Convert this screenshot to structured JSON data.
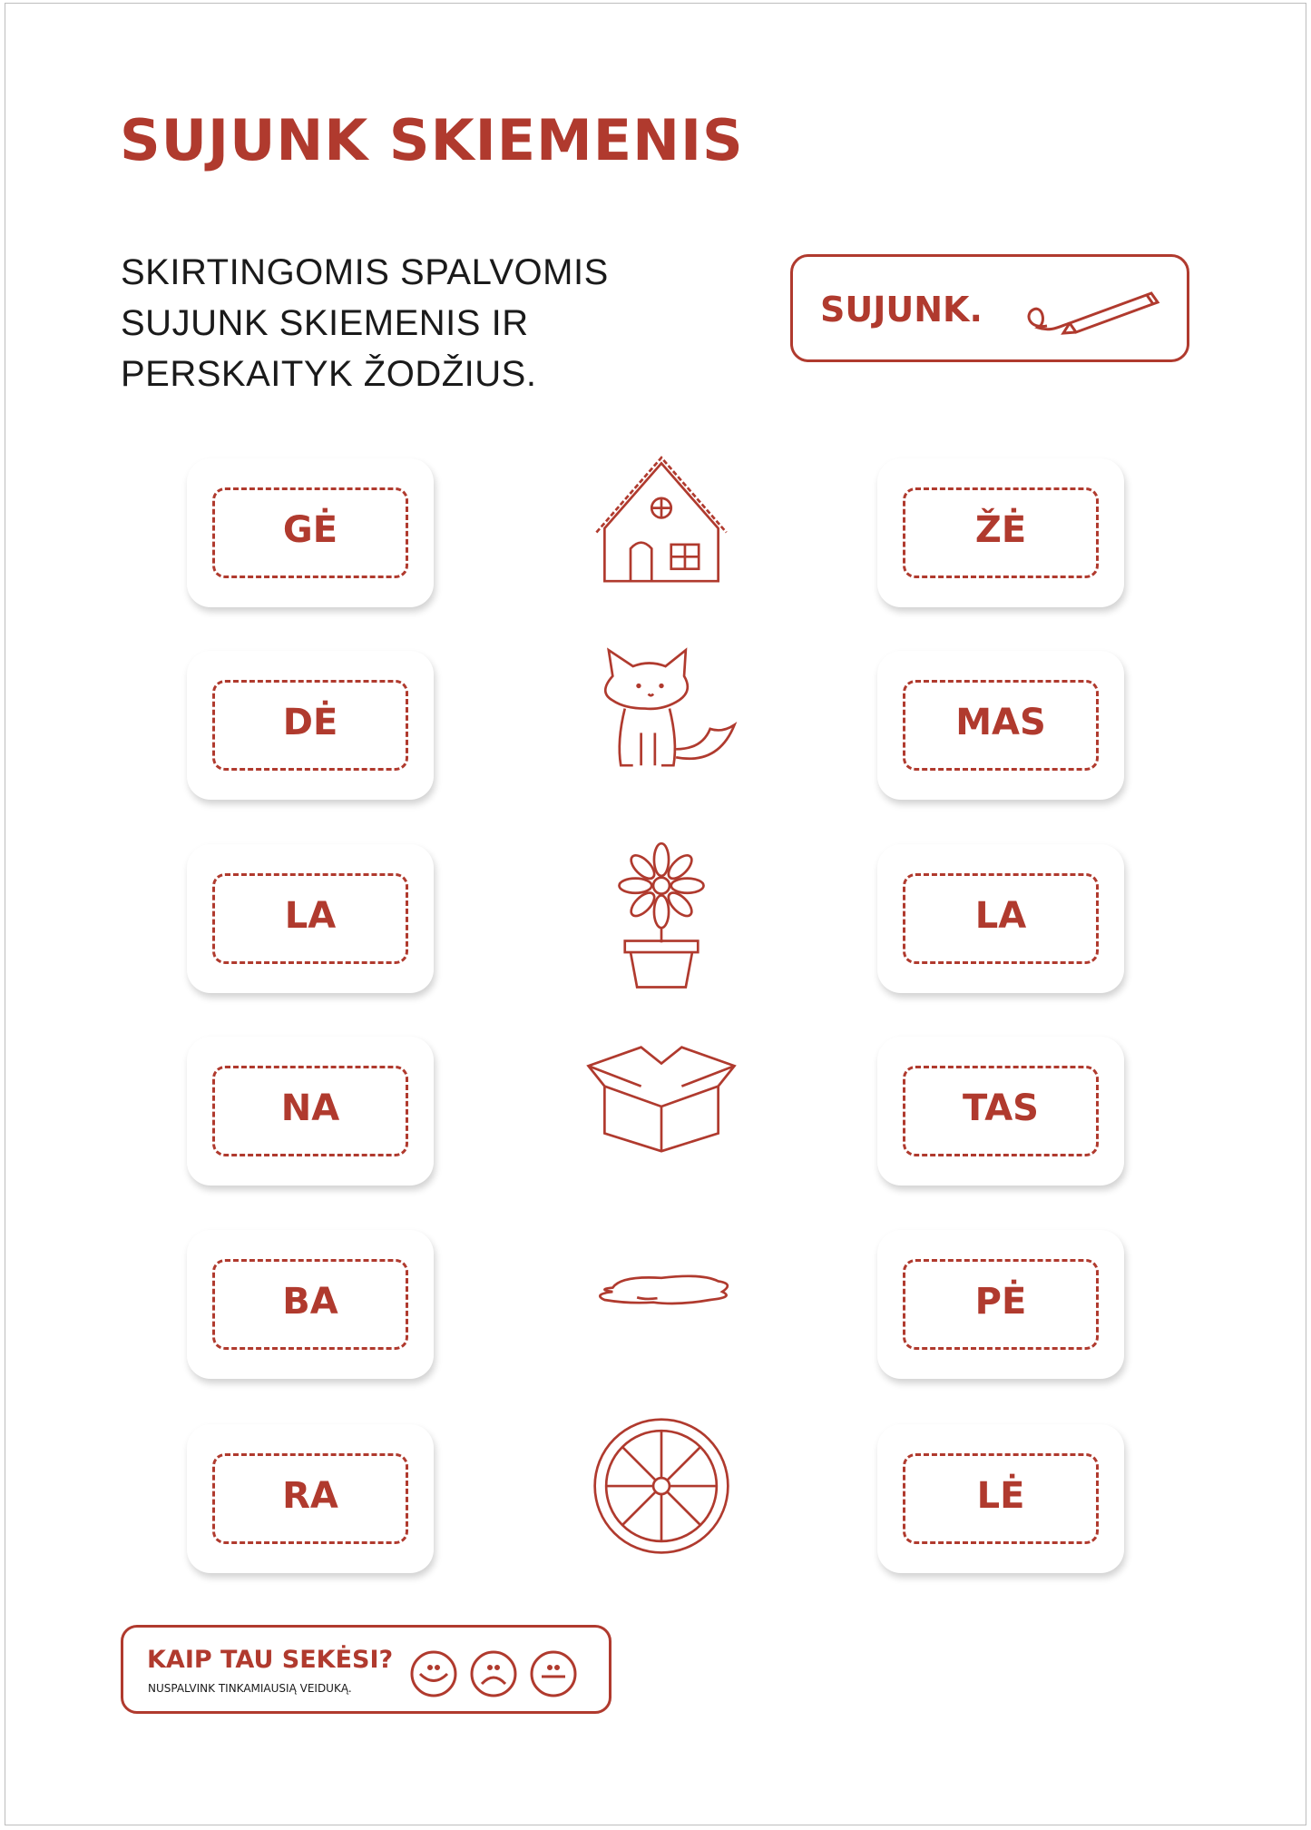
{
  "title": "SUJUNK SKIEMENIS",
  "instructions": [
    "SKIRTINGOMIS SPALVOMIS",
    "SUJUNK SKIEMENIS IR",
    "PERSKAITYK ŽODŽIUS."
  ],
  "hint": {
    "label": "SUJUNK.",
    "icon": "pencil-icon"
  },
  "left_syllables": [
    "GĖ",
    "DĖ",
    "LA",
    "NA",
    "BA",
    "RA"
  ],
  "right_syllables": [
    "ŽĖ",
    "MAS",
    "LA",
    "TAS",
    "PĖ",
    "LĖ"
  ],
  "pictures": [
    "house-icon",
    "fox-icon",
    "flower-pot-icon",
    "box-icon",
    "puddle-icon",
    "wheel-icon"
  ],
  "rating": {
    "title": "KAIP TAU SEKĖSI?",
    "subtitle": "NUSPALVINK TINKAMIAUSIĄ VEIDUKĄ.",
    "faces": [
      "happy-face-icon",
      "sad-face-icon",
      "neutral-face-icon"
    ]
  },
  "colors": {
    "accent": "#b03a2e",
    "text": "#1a1a1a"
  }
}
